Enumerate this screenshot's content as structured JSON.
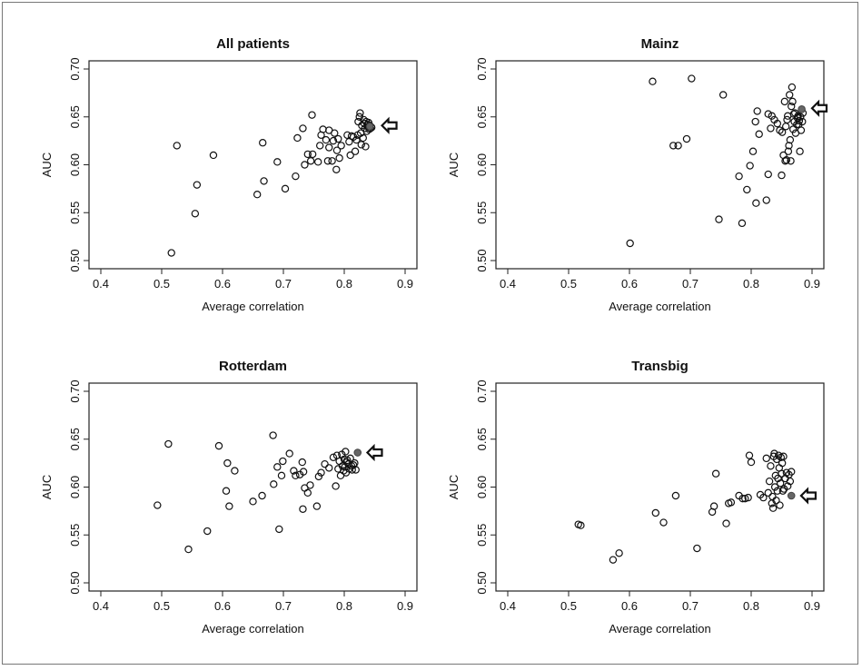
{
  "figure": {
    "xlabel": "Average correlation",
    "ylabel": "AUC"
  },
  "chart_data": [
    {
      "type": "scatter",
      "title": "All patients",
      "xlabel": "Average correlation",
      "ylabel": "AUC",
      "xlim": [
        0.4,
        0.9
      ],
      "ylim": [
        0.5,
        0.7
      ],
      "xticks": [
        "0.4",
        "0.5",
        "0.6",
        "0.7",
        "0.8",
        "0.9"
      ],
      "yticks": [
        "0.50",
        "0.55",
        "0.60",
        "0.65",
        "0.70"
      ],
      "points": [
        [
          0.516,
          0.508
        ],
        [
          0.525,
          0.62
        ],
        [
          0.555,
          0.549
        ],
        [
          0.558,
          0.579
        ],
        [
          0.585,
          0.61
        ],
        [
          0.657,
          0.569
        ],
        [
          0.666,
          0.623
        ],
        [
          0.668,
          0.583
        ],
        [
          0.69,
          0.603
        ],
        [
          0.703,
          0.575
        ],
        [
          0.72,
          0.588
        ],
        [
          0.723,
          0.628
        ],
        [
          0.732,
          0.638
        ],
        [
          0.735,
          0.6
        ],
        [
          0.74,
          0.611
        ],
        [
          0.745,
          0.604
        ],
        [
          0.747,
          0.652
        ],
        [
          0.748,
          0.611
        ],
        [
          0.757,
          0.603
        ],
        [
          0.76,
          0.62
        ],
        [
          0.762,
          0.631
        ],
        [
          0.765,
          0.637
        ],
        [
          0.77,
          0.626
        ],
        [
          0.773,
          0.604
        ],
        [
          0.775,
          0.618
        ],
        [
          0.775,
          0.636
        ],
        [
          0.78,
          0.604
        ],
        [
          0.782,
          0.625
        ],
        [
          0.784,
          0.633
        ],
        [
          0.787,
          0.595
        ],
        [
          0.788,
          0.615
        ],
        [
          0.79,
          0.627
        ],
        [
          0.792,
          0.607
        ],
        [
          0.795,
          0.62
        ],
        [
          0.805,
          0.631
        ],
        [
          0.808,
          0.624
        ],
        [
          0.81,
          0.61
        ],
        [
          0.812,
          0.63
        ],
        [
          0.815,
          0.629
        ],
        [
          0.818,
          0.614
        ],
        [
          0.82,
          0.626
        ],
        [
          0.822,
          0.631
        ],
        [
          0.823,
          0.645
        ],
        [
          0.825,
          0.65
        ],
        [
          0.826,
          0.654
        ],
        [
          0.827,
          0.633
        ],
        [
          0.828,
          0.621
        ],
        [
          0.829,
          0.641
        ],
        [
          0.831,
          0.628
        ],
        [
          0.832,
          0.647
        ],
        [
          0.833,
          0.643
        ],
        [
          0.834,
          0.638
        ],
        [
          0.835,
          0.619
        ],
        [
          0.836,
          0.645
        ],
        [
          0.837,
          0.635
        ],
        [
          0.838,
          0.642
        ],
        [
          0.839,
          0.64
        ],
        [
          0.84,
          0.644
        ],
        [
          0.841,
          0.637
        ],
        [
          0.842,
          0.641
        ],
        [
          0.843,
          0.638
        ],
        [
          0.845,
          0.639
        ]
      ],
      "highlight": [
        0.842,
        0.64
      ],
      "arrow_at": [
        0.862,
        0.641
      ]
    },
    {
      "type": "scatter",
      "title": "Mainz",
      "xlabel": "Average correlation",
      "ylabel": "AUC",
      "xlim": [
        0.4,
        0.9
      ],
      "ylim": [
        0.5,
        0.7
      ],
      "xticks": [
        "0.4",
        "0.5",
        "0.6",
        "0.7",
        "0.8",
        "0.9"
      ],
      "yticks": [
        "0.50",
        "0.55",
        "0.60",
        "0.65",
        "0.70"
      ],
      "points": [
        [
          0.601,
          0.518
        ],
        [
          0.638,
          0.687
        ],
        [
          0.672,
          0.62
        ],
        [
          0.68,
          0.62
        ],
        [
          0.694,
          0.627
        ],
        [
          0.702,
          0.69
        ],
        [
          0.747,
          0.543
        ],
        [
          0.754,
          0.673
        ],
        [
          0.78,
          0.588
        ],
        [
          0.785,
          0.539
        ],
        [
          0.793,
          0.574
        ],
        [
          0.798,
          0.599
        ],
        [
          0.803,
          0.614
        ],
        [
          0.807,
          0.645
        ],
        [
          0.808,
          0.56
        ],
        [
          0.81,
          0.656
        ],
        [
          0.813,
          0.632
        ],
        [
          0.825,
          0.563
        ],
        [
          0.828,
          0.59
        ],
        [
          0.828,
          0.653
        ],
        [
          0.832,
          0.638
        ],
        [
          0.834,
          0.651
        ],
        [
          0.838,
          0.647
        ],
        [
          0.843,
          0.643
        ],
        [
          0.847,
          0.636
        ],
        [
          0.85,
          0.589
        ],
        [
          0.851,
          0.634
        ],
        [
          0.853,
          0.61
        ],
        [
          0.855,
          0.666
        ],
        [
          0.856,
          0.604
        ],
        [
          0.857,
          0.64
        ],
        [
          0.858,
          0.605
        ],
        [
          0.859,
          0.647
        ],
        [
          0.86,
          0.651
        ],
        [
          0.861,
          0.614
        ],
        [
          0.862,
          0.62
        ],
        [
          0.863,
          0.673
        ],
        [
          0.864,
          0.626
        ],
        [
          0.865,
          0.604
        ],
        [
          0.866,
          0.661
        ],
        [
          0.867,
          0.681
        ],
        [
          0.868,
          0.666
        ],
        [
          0.869,
          0.637
        ],
        [
          0.87,
          0.653
        ],
        [
          0.871,
          0.645
        ],
        [
          0.872,
          0.654
        ],
        [
          0.873,
          0.633
        ],
        [
          0.875,
          0.642
        ],
        [
          0.876,
          0.649
        ],
        [
          0.877,
          0.651
        ],
        [
          0.878,
          0.642
        ],
        [
          0.879,
          0.646
        ],
        [
          0.88,
          0.614
        ],
        [
          0.881,
          0.65
        ],
        [
          0.882,
          0.636
        ],
        [
          0.884,
          0.645
        ],
        [
          0.885,
          0.654
        ]
      ],
      "highlight": [
        0.883,
        0.658
      ],
      "arrow_at": [
        0.9,
        0.659
      ]
    },
    {
      "type": "scatter",
      "title": "Rotterdam",
      "xlabel": "Average correlation",
      "ylabel": "AUC",
      "xlim": [
        0.4,
        0.9
      ],
      "ylim": [
        0.5,
        0.7
      ],
      "xticks": [
        "0.4",
        "0.5",
        "0.6",
        "0.7",
        "0.8",
        "0.9"
      ],
      "yticks": [
        "0.50",
        "0.55",
        "0.60",
        "0.65",
        "0.70"
      ],
      "points": [
        [
          0.493,
          0.581
        ],
        [
          0.511,
          0.645
        ],
        [
          0.544,
          0.535
        ],
        [
          0.575,
          0.554
        ],
        [
          0.594,
          0.643
        ],
        [
          0.606,
          0.596
        ],
        [
          0.608,
          0.625
        ],
        [
          0.611,
          0.58
        ],
        [
          0.62,
          0.617
        ],
        [
          0.65,
          0.585
        ],
        [
          0.665,
          0.591
        ],
        [
          0.683,
          0.654
        ],
        [
          0.684,
          0.603
        ],
        [
          0.69,
          0.621
        ],
        [
          0.693,
          0.556
        ],
        [
          0.697,
          0.612
        ],
        [
          0.699,
          0.627
        ],
        [
          0.71,
          0.635
        ],
        [
          0.717,
          0.617
        ],
        [
          0.72,
          0.612
        ],
        [
          0.727,
          0.613
        ],
        [
          0.731,
          0.626
        ],
        [
          0.732,
          0.577
        ],
        [
          0.733,
          0.616
        ],
        [
          0.735,
          0.599
        ],
        [
          0.74,
          0.594
        ],
        [
          0.744,
          0.602
        ],
        [
          0.755,
          0.58
        ],
        [
          0.758,
          0.611
        ],
        [
          0.762,
          0.615
        ],
        [
          0.768,
          0.624
        ],
        [
          0.775,
          0.62
        ],
        [
          0.782,
          0.631
        ],
        [
          0.786,
          0.601
        ],
        [
          0.788,
          0.633
        ],
        [
          0.79,
          0.619
        ],
        [
          0.792,
          0.627
        ],
        [
          0.794,
          0.612
        ],
        [
          0.796,
          0.634
        ],
        [
          0.797,
          0.622
        ],
        [
          0.799,
          0.617
        ],
        [
          0.8,
          0.629
        ],
        [
          0.801,
          0.621
        ],
        [
          0.802,
          0.637
        ],
        [
          0.803,
          0.615
        ],
        [
          0.804,
          0.626
        ],
        [
          0.805,
          0.628
        ],
        [
          0.807,
          0.624
        ],
        [
          0.808,
          0.619
        ],
        [
          0.81,
          0.63
        ],
        [
          0.812,
          0.622
        ],
        [
          0.813,
          0.618
        ],
        [
          0.815,
          0.623
        ],
        [
          0.817,
          0.625
        ],
        [
          0.819,
          0.618
        ]
      ],
      "highlight": [
        0.822,
        0.636
      ],
      "arrow_at": [
        0.838,
        0.636
      ]
    },
    {
      "type": "scatter",
      "title": "Transbig",
      "xlabel": "Average correlation",
      "ylabel": "AUC",
      "xlim": [
        0.4,
        0.9
      ],
      "ylim": [
        0.5,
        0.7
      ],
      "xticks": [
        "0.4",
        "0.5",
        "0.6",
        "0.7",
        "0.8",
        "0.9"
      ],
      "yticks": [
        "0.50",
        "0.55",
        "0.60",
        "0.65",
        "0.70"
      ],
      "points": [
        [
          0.516,
          0.561
        ],
        [
          0.52,
          0.56
        ],
        [
          0.573,
          0.524
        ],
        [
          0.583,
          0.531
        ],
        [
          0.643,
          0.573
        ],
        [
          0.656,
          0.563
        ],
        [
          0.676,
          0.591
        ],
        [
          0.711,
          0.536
        ],
        [
          0.736,
          0.574
        ],
        [
          0.739,
          0.58
        ],
        [
          0.742,
          0.614
        ],
        [
          0.759,
          0.562
        ],
        [
          0.763,
          0.583
        ],
        [
          0.767,
          0.584
        ],
        [
          0.78,
          0.591
        ],
        [
          0.786,
          0.588
        ],
        [
          0.79,
          0.588
        ],
        [
          0.795,
          0.589
        ],
        [
          0.797,
          0.633
        ],
        [
          0.8,
          0.626
        ],
        [
          0.815,
          0.592
        ],
        [
          0.82,
          0.589
        ],
        [
          0.825,
          0.63
        ],
        [
          0.828,
          0.594
        ],
        [
          0.83,
          0.606
        ],
        [
          0.832,
          0.622
        ],
        [
          0.834,
          0.583
        ],
        [
          0.835,
          0.59
        ],
        [
          0.836,
          0.578
        ],
        [
          0.837,
          0.632
        ],
        [
          0.838,
          0.635
        ],
        [
          0.839,
          0.6
        ],
        [
          0.84,
          0.612
        ],
        [
          0.841,
          0.586
        ],
        [
          0.842,
          0.629
        ],
        [
          0.843,
          0.596
        ],
        [
          0.844,
          0.609
        ],
        [
          0.845,
          0.633
        ],
        [
          0.846,
          0.62
        ],
        [
          0.847,
          0.581
        ],
        [
          0.848,
          0.604
        ],
        [
          0.849,
          0.631
        ],
        [
          0.85,
          0.614
        ],
        [
          0.851,
          0.625
        ],
        [
          0.852,
          0.596
        ],
        [
          0.853,
          0.632
        ],
        [
          0.854,
          0.598
        ],
        [
          0.856,
          0.609
        ],
        [
          0.858,
          0.615
        ],
        [
          0.86,
          0.601
        ],
        [
          0.862,
          0.613
        ],
        [
          0.864,
          0.606
        ],
        [
          0.866,
          0.616
        ]
      ],
      "highlight": [
        0.866,
        0.591
      ],
      "arrow_at": [
        0.882,
        0.591
      ]
    }
  ]
}
